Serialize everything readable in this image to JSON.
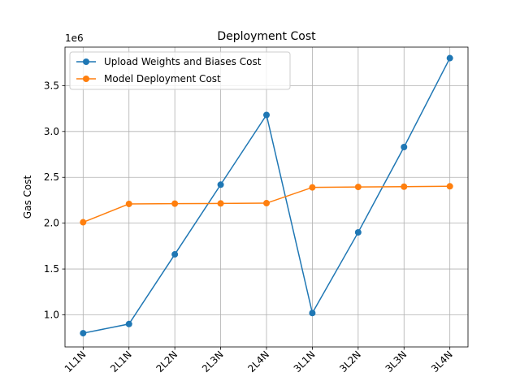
{
  "chart_data": {
    "type": "line",
    "title": "Deployment Cost",
    "xlabel": "",
    "ylabel": "Gas Cost",
    "y_offset_label": "1e6",
    "categories": [
      "1L1N",
      "2L1N",
      "2L2N",
      "2L3N",
      "2L4N",
      "3L1N",
      "3L2N",
      "3L3N",
      "3L4N"
    ],
    "series": [
      {
        "name": "Upload Weights and Biases Cost",
        "color": "#1f77b4",
        "values": [
          800000,
          900000,
          1660000,
          2420000,
          3180000,
          1020000,
          1900000,
          2830000,
          3800000
        ]
      },
      {
        "name": "Model Deployment Cost",
        "color": "#ff7f0e",
        "values": [
          2010000,
          2210000,
          2213000,
          2215000,
          2218000,
          2390000,
          2395000,
          2398000,
          2402000
        ]
      }
    ],
    "ylim": [
      650000,
      3920000
    ],
    "yticks": [
      1000000,
      1500000,
      2000000,
      2500000,
      3000000,
      3500000
    ],
    "ytick_labels": [
      "1.0",
      "1.5",
      "2.0",
      "2.5",
      "3.0",
      "3.5"
    ],
    "grid": true,
    "legend_position": "upper-left"
  }
}
